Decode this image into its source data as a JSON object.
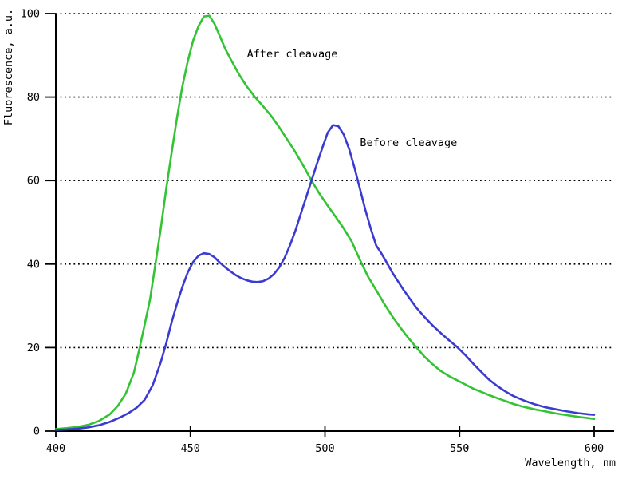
{
  "figure": {
    "background": "#ffffff",
    "axis_color": "#000000",
    "text_color": "#000000"
  },
  "chart_data": {
    "type": "line",
    "title": "",
    "xlabel": "Wavelength, nm",
    "ylabel": "Fluorescence, a.u.",
    "xlim": [
      400,
      600
    ],
    "ylim": [
      0,
      100
    ],
    "x_ticks": [
      400,
      450,
      500,
      550,
      600
    ],
    "y_ticks": [
      0,
      20,
      40,
      60,
      80,
      100
    ],
    "grid": "horizontal-dotted",
    "legend_position": "inline-annotations",
    "series": [
      {
        "name": "After cleavage",
        "color": "#33c433",
        "x": [
          400,
          404,
          408,
          412,
          416,
          420,
          423,
          426,
          429,
          431,
          433,
          435,
          437,
          439,
          441,
          443,
          445,
          447,
          449,
          451,
          453,
          455,
          457,
          459,
          461,
          463,
          465,
          468,
          471,
          474,
          477,
          480,
          483,
          486,
          489,
          492,
          495,
          498,
          501,
          504,
          507,
          510,
          513,
          516,
          519,
          522,
          525,
          528,
          531,
          534,
          537,
          540,
          543,
          546,
          549,
          552,
          555,
          558,
          561,
          564,
          567,
          570,
          574,
          578,
          582,
          586,
          590,
          594,
          598,
          600
        ],
        "y": [
          0.5,
          0.7,
          1.0,
          1.5,
          2.4,
          4.0,
          6.0,
          9.0,
          14.0,
          19.5,
          25.5,
          31.5,
          40.0,
          48.5,
          58.0,
          66.5,
          75.0,
          82.5,
          88.5,
          93.5,
          97.0,
          99.3,
          99.5,
          97.5,
          94.5,
          91.5,
          89.0,
          85.5,
          82.5,
          80.0,
          77.8,
          75.5,
          72.8,
          69.8,
          66.8,
          63.5,
          60.0,
          56.8,
          54.0,
          51.3,
          48.5,
          45.3,
          41.0,
          37.0,
          33.8,
          30.5,
          27.5,
          24.8,
          22.3,
          20.0,
          17.8,
          16.0,
          14.4,
          13.2,
          12.2,
          11.2,
          10.2,
          9.4,
          8.6,
          7.9,
          7.2,
          6.5,
          5.8,
          5.2,
          4.7,
          4.2,
          3.8,
          3.4,
          3.1,
          2.9
        ]
      },
      {
        "name": "Before cleavage",
        "color": "#3b3bd1",
        "x": [
          400,
          404,
          408,
          412,
          416,
          420,
          424,
          427,
          430,
          433,
          436,
          439,
          441,
          443,
          445,
          447,
          449,
          451,
          453,
          455,
          457,
          459,
          461,
          463,
          465,
          467,
          469,
          471,
          473,
          475,
          477,
          479,
          481,
          483,
          485,
          487,
          489,
          491,
          493,
          495,
          497,
          499,
          501,
          503,
          505,
          507,
          509,
          511,
          513,
          515,
          517,
          519,
          521,
          523,
          525,
          527,
          529,
          531,
          534,
          537,
          540,
          543,
          546,
          549,
          552,
          555,
          558,
          561,
          564,
          567,
          570,
          574,
          578,
          582,
          586,
          590,
          594,
          598,
          600
        ],
        "y": [
          0.3,
          0.4,
          0.6,
          0.9,
          1.4,
          2.2,
          3.3,
          4.3,
          5.6,
          7.5,
          11.0,
          16.5,
          21.0,
          26.0,
          30.5,
          34.5,
          38.0,
          40.5,
          42.0,
          42.6,
          42.4,
          41.6,
          40.3,
          39.2,
          38.2,
          37.3,
          36.6,
          36.1,
          35.8,
          35.7,
          35.9,
          36.5,
          37.6,
          39.2,
          41.5,
          44.5,
          48.0,
          52.0,
          56.0,
          60.0,
          64.0,
          67.8,
          71.5,
          73.3,
          73.0,
          71.0,
          67.5,
          63.0,
          58.0,
          53.0,
          48.5,
          44.5,
          42.5,
          40.3,
          38.0,
          36.0,
          34.0,
          32.2,
          29.5,
          27.3,
          25.3,
          23.5,
          21.8,
          20.2,
          18.3,
          16.2,
          14.2,
          12.3,
          10.8,
          9.5,
          8.4,
          7.3,
          6.4,
          5.7,
          5.2,
          4.7,
          4.3,
          4.0,
          3.9
        ]
      }
    ],
    "annotations": [
      {
        "text": "After cleavage",
        "x": 471,
        "y": 89.5
      },
      {
        "text": "Before cleavage",
        "x": 513,
        "y": 68.3
      }
    ]
  }
}
